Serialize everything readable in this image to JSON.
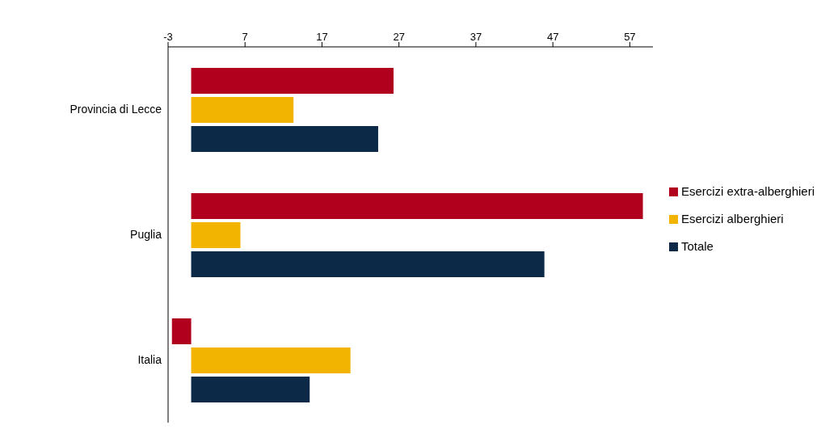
{
  "chart_data": {
    "type": "bar",
    "orientation": "horizontal",
    "categories": [
      "Provincia di Lecce",
      "Puglia",
      "Italia"
    ],
    "series": [
      {
        "name": "Esercizi extra-alberghieri",
        "color": "#b0001e",
        "values": [
          26.3,
          58.7,
          -2.5
        ]
      },
      {
        "name": "Esercizi alberghieri",
        "color": "#f2b400",
        "values": [
          13.3,
          6.4,
          20.7
        ]
      },
      {
        "name": "Totale",
        "color": "#0c2a47",
        "values": [
          24.3,
          45.9,
          15.4
        ]
      }
    ],
    "xlim": [
      -3,
      60
    ],
    "xticks": [
      -3,
      7,
      17,
      27,
      37,
      47,
      57
    ],
    "legend": "right"
  }
}
